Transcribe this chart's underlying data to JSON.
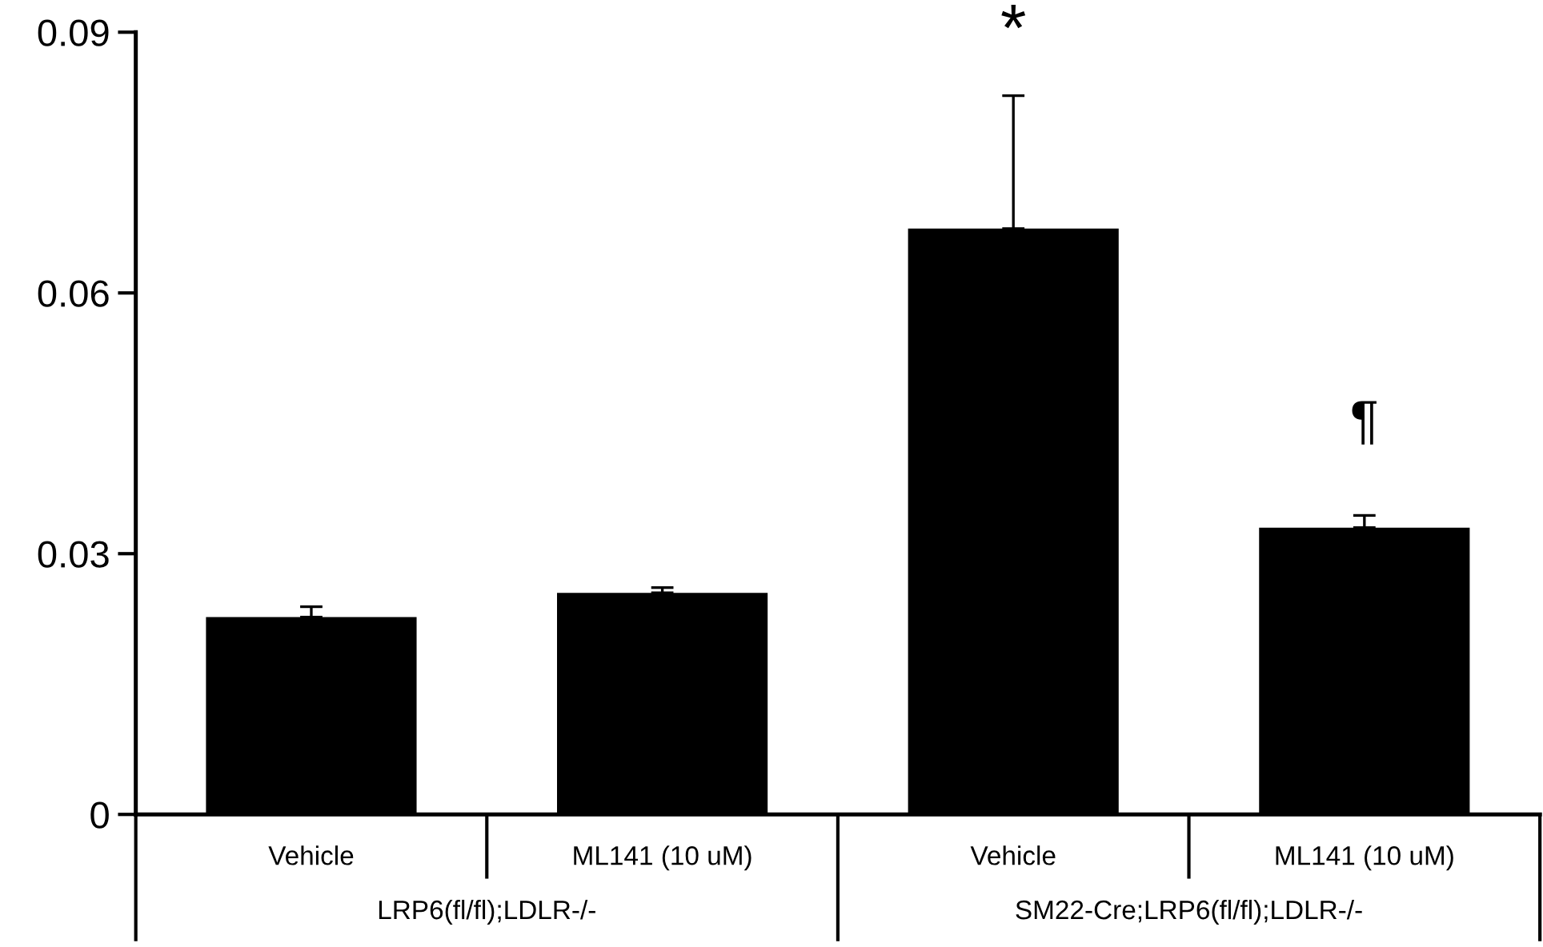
{
  "chart_data": {
    "type": "bar",
    "categories": [
      "Vehicle",
      "ML141 (10 uM)",
      "Vehicle",
      "ML141 (10 uM)"
    ],
    "values": [
      0.0227,
      0.0255,
      0.0674,
      0.033
    ],
    "errors": [
      [
        0.0227,
        0.0239
      ],
      [
        0.0255,
        0.0261
      ],
      [
        0.0674,
        0.0827
      ],
      [
        0.033,
        0.0344
      ]
    ],
    "color": "#000000",
    "ylim": [
      0,
      0.09
    ],
    "yticks": [
      0,
      0.03,
      0.06,
      0.09
    ],
    "annotations": [
      "*",
      "¶",
      "LRP6(fl/fl);LDLR-/-",
      "SM22-Cre;LRP6(fl/fl);LDLR-/-"
    ],
    "grid": false
  }
}
